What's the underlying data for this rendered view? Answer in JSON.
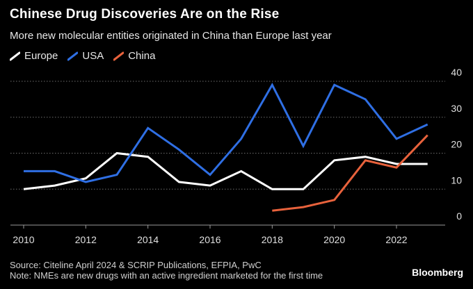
{
  "chart_data": {
    "type": "line",
    "title": "Chinese Drug Discoveries Are on the Rise",
    "subtitle": "More new molecular entities originated in China than Europe last year",
    "xlabel": "",
    "ylabel": "",
    "xlim": [
      2010,
      2023
    ],
    "ylim": [
      0,
      40
    ],
    "x_ticks": [
      2010,
      2012,
      2014,
      2016,
      2018,
      2020,
      2022
    ],
    "y_ticks": [
      0,
      10,
      20,
      30,
      40
    ],
    "grid": true,
    "legend_position": "top-left",
    "series": [
      {
        "name": "Europe",
        "color": "#ffffff",
        "x": [
          2010,
          2011,
          2012,
          2013,
          2014,
          2015,
          2016,
          2017,
          2018,
          2019,
          2020,
          2021,
          2022,
          2023
        ],
        "values": [
          10,
          11,
          13,
          20,
          19,
          12,
          11,
          15,
          10,
          10,
          18,
          19,
          17,
          17
        ]
      },
      {
        "name": "USA",
        "color": "#2f6fe4",
        "x": [
          2010,
          2011,
          2012,
          2013,
          2014,
          2015,
          2016,
          2017,
          2018,
          2019,
          2020,
          2021,
          2022,
          2023
        ],
        "values": [
          15,
          15,
          12,
          14,
          27,
          21,
          14,
          24,
          39,
          22,
          39,
          35,
          24,
          28
        ]
      },
      {
        "name": "China",
        "color": "#e8623c",
        "x": [
          2018,
          2019,
          2020,
          2021,
          2022,
          2023
        ],
        "values": [
          4,
          5,
          7,
          18,
          16,
          25
        ]
      }
    ]
  },
  "source": "Source: Citeline April 2024 & SCRIP Publications, EFPIA, PwC",
  "note": "Note: NMEs are new drugs with an active ingredient marketed for the first time",
  "brand": "Bloomberg"
}
